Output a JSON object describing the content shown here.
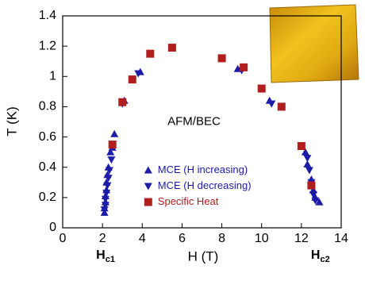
{
  "chart_data": {
    "type": "scatter",
    "x_label": "H (T)",
    "y_label": "T (K)",
    "annotations": [
      {
        "text": "AFM/BEC",
        "x": 6.6,
        "y": 0.7
      }
    ],
    "field_labels": [
      {
        "main": "H",
        "sub": "c1",
        "x": 2
      },
      {
        "main": "H",
        "sub": "c2",
        "x": 12.8
      }
    ],
    "xlim": [
      0,
      14
    ],
    "xticks": [
      0,
      2,
      4,
      6,
      8,
      10,
      12,
      14
    ],
    "ylim": [
      0,
      1.4
    ],
    "yticks": [
      0,
      0.2,
      0.4,
      0.6,
      0.8,
      1,
      1.2,
      1.4
    ],
    "legend": "lower center",
    "series": [
      {
        "name": "MCE (H increasing)",
        "color": "#1c1ca8",
        "marker": "triangle-up",
        "x": [
          2.1,
          2.1,
          2.15,
          2.15,
          2.2,
          2.2,
          2.25,
          2.3,
          2.4,
          2.5,
          2.6,
          3.1,
          3.9,
          8.8,
          10.4,
          12.2,
          12.3,
          12.5,
          12.6,
          12.7,
          12.9
        ],
        "values": [
          0.1,
          0.13,
          0.17,
          0.21,
          0.25,
          0.3,
          0.35,
          0.4,
          0.5,
          0.53,
          0.62,
          0.84,
          1.03,
          1.05,
          0.84,
          0.5,
          0.42,
          0.32,
          0.25,
          0.2,
          0.17
        ]
      },
      {
        "name": "MCE (H decreasing)",
        "color": "#1c1ca8",
        "marker": "triangle-down",
        "x": [
          2.1,
          2.15,
          2.15,
          2.2,
          2.25,
          2.3,
          2.35,
          2.45,
          3.0,
          3.8,
          9.0,
          10.5,
          12.3,
          12.4,
          12.5,
          12.6,
          12.7
        ],
        "values": [
          0.12,
          0.15,
          0.19,
          0.23,
          0.28,
          0.33,
          0.38,
          0.45,
          0.82,
          1.02,
          1.04,
          0.82,
          0.46,
          0.38,
          0.3,
          0.22,
          0.18
        ]
      },
      {
        "name": "Specific Heat",
        "color": "#b01e1e",
        "marker": "square",
        "x": [
          2.5,
          3.0,
          3.5,
          4.4,
          5.5,
          8.0,
          9.1,
          10.0,
          11.0,
          12.0,
          12.5
        ],
        "values": [
          0.55,
          0.83,
          0.98,
          1.15,
          1.19,
          1.12,
          1.06,
          0.92,
          0.8,
          0.54,
          0.28
        ]
      }
    ]
  }
}
